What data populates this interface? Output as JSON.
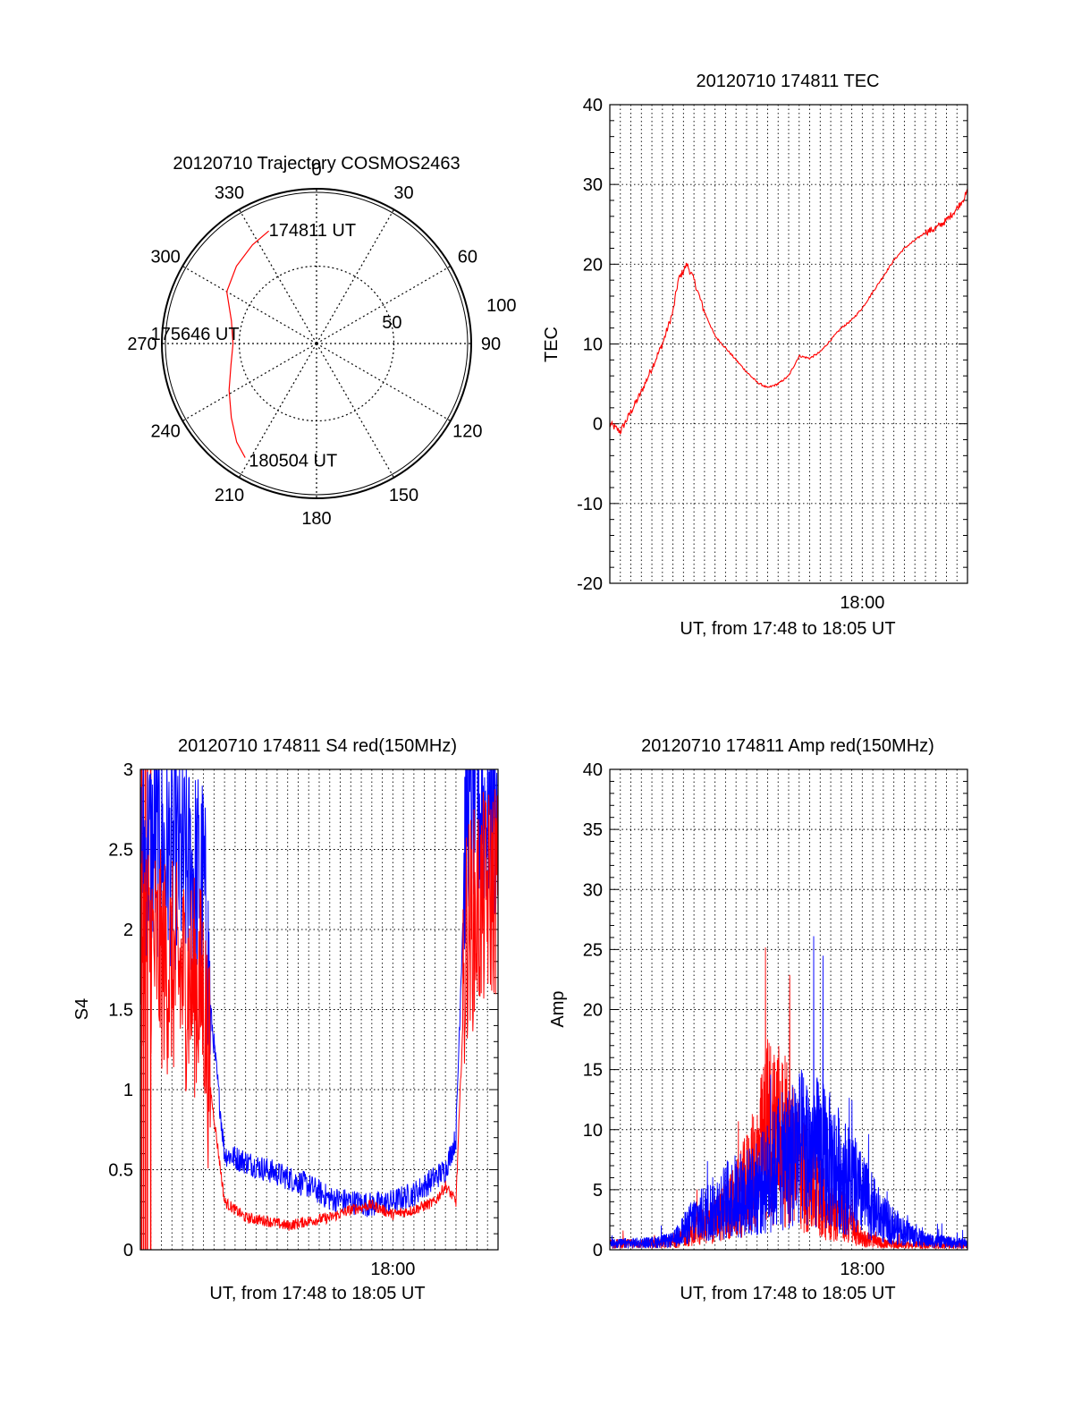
{
  "figure": {
    "colors": {
      "primary_trace": "#ff0000",
      "secondary_trace": "#0000ff",
      "axes": "#000000",
      "background": "#ffffff"
    }
  },
  "chart_data": [
    {
      "id": "trajectory",
      "type": "polar",
      "title": "20120710 Trajectory COSMOS2463",
      "angle_labels": [
        "0",
        "30",
        "60",
        "90",
        "120",
        "150",
        "180",
        "210",
        "240",
        "270",
        "300",
        "330"
      ],
      "angle_values": [
        0,
        30,
        60,
        90,
        120,
        150,
        180,
        210,
        240,
        270,
        300,
        330
      ],
      "radial_range": [
        0,
        100
      ],
      "radial_labels": [
        "50",
        "100"
      ],
      "radial_values": [
        50,
        100
      ],
      "angle_direction": "clockwise from top",
      "grid": true,
      "series": [
        {
          "points": [
            {
              "az": 337,
              "r": 79
            },
            {
              "az": 327,
              "r": 76
            },
            {
              "az": 314,
              "r": 72
            },
            {
              "az": 300,
              "r": 67
            },
            {
              "az": 285,
              "r": 57
            },
            {
              "az": 270,
              "r": 54
            },
            {
              "az": 256,
              "r": 57
            },
            {
              "az": 242,
              "r": 64
            },
            {
              "az": 229,
              "r": 73
            },
            {
              "az": 219,
              "r": 82
            },
            {
              "az": 212,
              "r": 87
            }
          ]
        }
      ],
      "annotations": [
        {
          "text": "174811 UT",
          "az": 337,
          "r": 79
        },
        {
          "text": "175646 UT",
          "az": 270,
          "r": 54
        },
        {
          "text": "180504 UT",
          "az": 212,
          "r": 87
        }
      ]
    },
    {
      "id": "tec",
      "type": "line",
      "title": "20120710 174811 TEC",
      "xlabel": "UT, from 17:48 to 18:05 UT",
      "ylabel": "TEC",
      "xlim": [
        "17:48",
        "18:05"
      ],
      "ylim": [
        -20,
        40
      ],
      "yticks": [
        -20,
        -10,
        0,
        10,
        20,
        30,
        40
      ],
      "xtick_labels": [
        "18:00"
      ],
      "grid": true,
      "series": [
        {
          "x": [
            "17:48",
            "17:48:30",
            "17:49",
            "17:49:30",
            "17:50",
            "17:50:30",
            "17:51",
            "17:51:15",
            "17:51:40",
            "17:52",
            "17:52:30",
            "17:53",
            "17:53:30",
            "17:54",
            "17:54:30",
            "17:55",
            "17:55:30",
            "17:56",
            "17:56:30",
            "17:57",
            "17:57:30",
            "17:58",
            "17:58:30",
            "17:59",
            "17:59:30",
            "18:00",
            "18:00:30",
            "18:01",
            "18:01:30",
            "18:02",
            "18:02:30",
            "18:03",
            "18:03:30",
            "18:04",
            "18:04:30",
            "18:05"
          ],
          "y": [
            0,
            -1,
            1.5,
            4,
            7,
            10,
            14,
            18,
            20,
            18,
            14,
            11,
            9.5,
            8,
            6.5,
            5.2,
            4.5,
            5,
            6,
            8.5,
            8.2,
            9,
            10.5,
            12,
            13,
            14.5,
            16.5,
            18.5,
            20.5,
            22,
            23,
            24,
            24.5,
            25.5,
            27,
            29
          ]
        }
      ]
    },
    {
      "id": "s4",
      "type": "line",
      "title": "20120710 174811 S4 red(150MHz)",
      "xlabel": "UT, from 17:48 to 18:05 UT",
      "ylabel": "S4",
      "xlim": [
        "17:48",
        "18:05"
      ],
      "ylim": [
        0,
        3
      ],
      "yticks": [
        0,
        0.5,
        1,
        1.5,
        2,
        2.5,
        3
      ],
      "ytick_labels": [
        "0",
        "0.5",
        "1",
        "1.5",
        "2",
        "2.5",
        "3"
      ],
      "xtick_labels": [
        "18:00"
      ],
      "grid": true,
      "series": [
        {
          "x": [
            "17:48",
            "17:49",
            "17:50",
            "17:51",
            "17:51:20",
            "17:52",
            "17:53",
            "17:54",
            "17:55",
            "17:56",
            "17:57",
            "17:58",
            "17:59",
            "18:00",
            "18:01",
            "18:02",
            "18:02:30",
            "18:03",
            "18:03:30",
            "18:04",
            "18:05"
          ],
          "y": [
            2.0,
            1.8,
            1.7,
            1.6,
            1.0,
            0.3,
            0.2,
            0.18,
            0.15,
            0.18,
            0.2,
            0.25,
            0.28,
            0.22,
            0.25,
            0.3,
            0.4,
            0.3,
            2.0,
            2.1,
            2.3
          ]
        },
        {
          "x": [
            "17:48",
            "17:49",
            "17:50",
            "17:51",
            "17:51:20",
            "17:52",
            "17:53",
            "17:54",
            "17:55",
            "17:56",
            "17:57",
            "17:58",
            "17:59",
            "18:00",
            "18:01",
            "18:02",
            "18:02:30",
            "18:03",
            "18:03:30",
            "18:04",
            "18:05"
          ],
          "y": [
            2.5,
            2.5,
            2.4,
            2.3,
            1.5,
            0.6,
            0.55,
            0.5,
            0.45,
            0.4,
            0.32,
            0.3,
            0.28,
            0.3,
            0.35,
            0.45,
            0.5,
            0.7,
            2.8,
            2.8,
            2.7
          ]
        }
      ]
    },
    {
      "id": "amp",
      "type": "line",
      "title": "20120710 174811 Amp red(150MHz)",
      "xlabel": "UT, from 17:48 to 18:05 UT",
      "ylabel": "Amp",
      "xlim": [
        "17:48",
        "18:05"
      ],
      "ylim": [
        0,
        40
      ],
      "yticks": [
        0,
        5,
        10,
        15,
        20,
        25,
        30,
        35,
        40
      ],
      "xtick_labels": [
        "18:00"
      ],
      "grid": true,
      "series": [
        {
          "x": [
            "17:48",
            "17:50",
            "17:51",
            "17:52",
            "17:53",
            "17:54",
            "17:55",
            "17:55:30",
            "17:56",
            "17:57",
            "17:58",
            "17:59",
            "18:00",
            "18:01",
            "18:02",
            "18:03",
            "18:05"
          ],
          "y": [
            0.5,
            0.5,
            0.6,
            1.5,
            2.5,
            4,
            7,
            10,
            10,
            7,
            4,
            3,
            1,
            0.5,
            0.4,
            0.4,
            0.4
          ]
        },
        {
          "x": [
            "17:48",
            "17:50",
            "17:51",
            "17:52",
            "17:53",
            "17:54",
            "17:55",
            "17:55:30",
            "17:56",
            "17:57",
            "17:58",
            "17:59",
            "18:00",
            "18:01",
            "18:02",
            "18:03",
            "18:05"
          ],
          "y": [
            0.5,
            0.6,
            0.8,
            2.5,
            3.5,
            4.5,
            5,
            6,
            7,
            8.5,
            8,
            6.5,
            4.5,
            2.5,
            1.5,
            0.8,
            0.5
          ]
        }
      ]
    }
  ]
}
